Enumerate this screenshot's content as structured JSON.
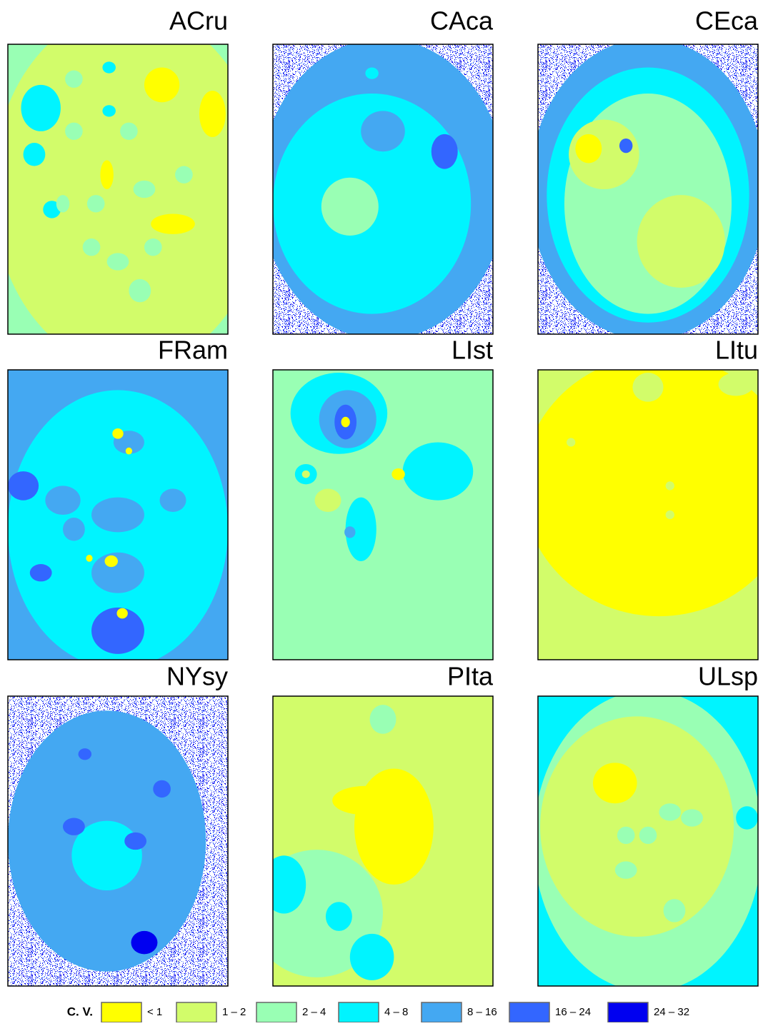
{
  "panels": [
    {
      "title": "ACru"
    },
    {
      "title": "CAca"
    },
    {
      "title": "CEca"
    },
    {
      "title": "FRam"
    },
    {
      "title": "LIst"
    },
    {
      "title": "LItu"
    },
    {
      "title": "NYsy"
    },
    {
      "title": "PIta"
    },
    {
      "title": "ULsp"
    }
  ],
  "legend": {
    "title": "C. V.",
    "items": [
      {
        "label": "< 1",
        "color": "#ffff00"
      },
      {
        "label": "1 – 2",
        "color": "#d2fc6a"
      },
      {
        "label": "2 – 4",
        "color": "#99ffb4"
      },
      {
        "label": "4 – 8",
        "color": "#00f4ff"
      },
      {
        "label": "8 – 16",
        "color": "#44a8f2"
      },
      {
        "label": "16 – 24",
        "color": "#3366ff"
      },
      {
        "label": "24 – 32",
        "color": "#0000f0"
      }
    ]
  }
}
